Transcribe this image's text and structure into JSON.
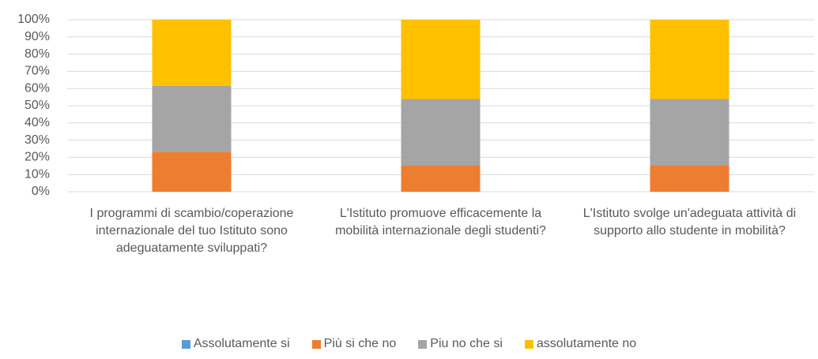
{
  "chart_data": {
    "type": "stacked_bar",
    "categories": [
      "I programmi di scambio/coperazione internazionale del tuo Istituto sono adeguatamente sviluppati?",
      "L'Istituto promuove efficacemente la mobilità internazionale degli studenti?",
      "L'Istituto svolge un'adeguata attività di supporto allo studente in mobilità?"
    ],
    "series": [
      {
        "name": "Assolutamente si",
        "color": "#5b9bd5",
        "values": [
          0,
          0,
          0
        ]
      },
      {
        "name": "Più si che no",
        "color": "#ed7d31",
        "values": [
          23.1,
          15.4,
          15.4
        ]
      },
      {
        "name": "Piu no che si",
        "color": "#a5a5a5",
        "values": [
          38.5,
          38.5,
          38.5
        ]
      },
      {
        "name": "assolutamente no",
        "color": "#ffc000",
        "values": [
          38.5,
          46.1,
          46.1
        ]
      }
    ],
    "ylim": [
      0,
      100
    ],
    "yticks": [
      {
        "value": 0,
        "label": "0%"
      },
      {
        "value": 10,
        "label": "10%"
      },
      {
        "value": 20,
        "label": "20%"
      },
      {
        "value": 30,
        "label": "30%"
      },
      {
        "value": 40,
        "label": "40%"
      },
      {
        "value": 50,
        "label": "50%"
      },
      {
        "value": 60,
        "label": "60%"
      },
      {
        "value": 70,
        "label": "70%"
      },
      {
        "value": 80,
        "label": "80%"
      },
      {
        "value": 90,
        "label": "90%"
      },
      {
        "value": 100,
        "label": "100%"
      }
    ],
    "grid": true,
    "legend": "bottom"
  }
}
